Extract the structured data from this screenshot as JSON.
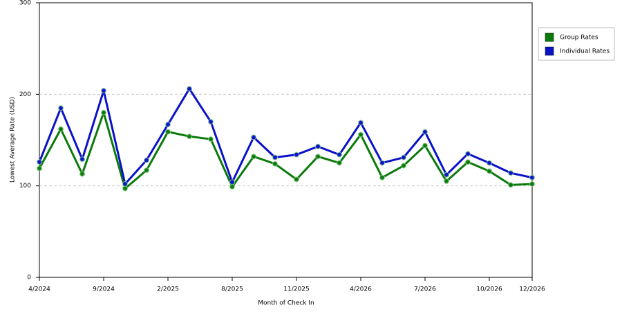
{
  "chart_data": {
    "type": "line",
    "x_label": "Month of Check In",
    "y_label": "Lowest Average Rate (USD)",
    "categories": [
      "4/2024",
      null,
      null,
      "9/2024",
      null,
      null,
      "2/2025",
      null,
      null,
      "8/2025",
      null,
      null,
      "11/2025",
      null,
      null,
      "4/2026",
      null,
      null,
      "7/2026",
      null,
      null,
      "10/2026",
      null,
      "12/2026"
    ],
    "series": [
      {
        "name": "Group Rates",
        "color": "#0a7a0a",
        "values": [
          119,
          162,
          113,
          180,
          97,
          117,
          159,
          154,
          151,
          99,
          132,
          124,
          107,
          132,
          125,
          156,
          109,
          122,
          144,
          105,
          126,
          116,
          101,
          102
        ]
      },
      {
        "name": "Individual Rates",
        "color": "#0a12c8",
        "values": [
          126,
          185,
          129,
          204,
          102,
          128,
          167,
          206,
          170,
          104,
          153,
          131,
          134,
          143,
          134,
          169,
          125,
          131,
          159,
          112,
          135,
          125,
          114,
          109
        ]
      }
    ],
    "ylim": [
      0,
      300
    ],
    "yticks": [
      0,
      100,
      200,
      300
    ],
    "grid": true,
    "legend": "right"
  }
}
